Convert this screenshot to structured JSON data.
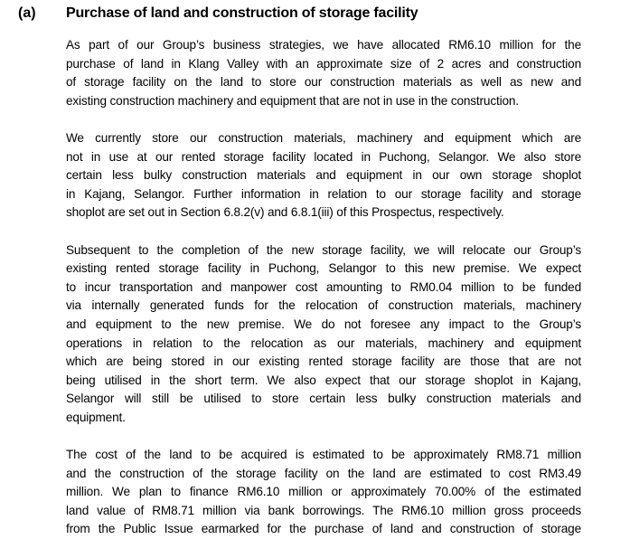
{
  "section": {
    "label": "(a)",
    "heading": "Purchase of land and construction of storage facility",
    "paragraphs": [
      [
        "As part of our Group’s business strategies, we have allocated RM6.10 million for the",
        "purchase of land in Klang Valley with an approximate size of 2 acres and construction",
        "of storage facility on the land to store our construction materials as well as new and",
        "existing construction machinery and equipment that are not in use in the construction."
      ],
      [
        "We currently store our construction materials, machinery and equipment which are",
        "not in use at our rented storage facility located in Puchong, Selangor. We also store",
        "certain less bulky construction materials and equipment in our own storage shoplot",
        "in Kajang, Selangor. Further information in relation to our storage facility and storage",
        "shoplot are set out in Section 6.8.2(v) and 6.8.1(iii) of this Prospectus, respectively."
      ],
      [
        "Subsequent to the completion of the new storage facility, we will relocate our Group’s",
        "existing rented storage facility in Puchong, Selangor to this new premise. We expect",
        "to incur transportation and manpower cost amounting to RM0.04 million to be funded",
        "via internally generated funds for the relocation of construction materials, machinery",
        "and equipment to the new premise. We do not foresee any impact to the Group’s",
        "operations in relation to the relocation as our materials, machinery and equipment",
        "which are being stored in our existing rented storage facility are those that are not",
        "being utilised in the short term. We also expect that our storage shoplot in Kajang,",
        "Selangor will still be utilised to store certain less bulky construction materials and",
        "equipment."
      ],
      [
        "The cost of the land to be acquired is estimated to be approximately RM8.71 million",
        "and the construction of the storage facility on the land are estimated to cost RM3.49",
        "million. We plan to finance RM6.10 million or approximately 70.00% of the estimated",
        "land value of RM8.71 million via bank borrowings. The RM6.10 million gross proceeds",
        "from the Public Issue earmarked for the purchase of land and construction of storage"
      ]
    ]
  }
}
